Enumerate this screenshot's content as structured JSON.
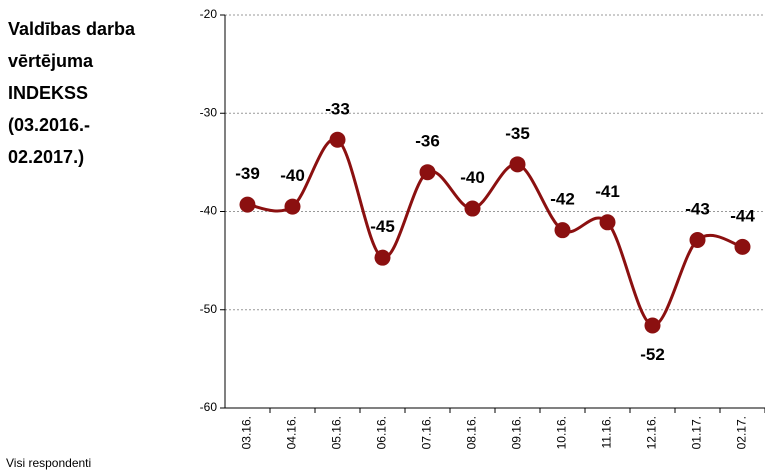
{
  "chart_data": {
    "type": "line",
    "title": [
      "Valdības darba",
      "vērtējuma",
      "INDEKSS",
      "(03.2016.-",
      "02.2017.)"
    ],
    "footnote": "Visi respondenti",
    "categories": [
      "03.16.",
      "04.16.",
      "05.16.",
      "06.16.",
      "07.16.",
      "08.16.",
      "09.16.",
      "10.16.",
      "11.16.",
      "12.16.",
      "01.17.",
      "02.17."
    ],
    "series": [
      {
        "name": "INDEKSS",
        "color": "#8b1010",
        "values": [
          -39.3,
          -39.5,
          -32.7,
          -44.7,
          -36.0,
          -39.7,
          -35.2,
          -41.9,
          -41.1,
          -51.6,
          -42.9,
          -43.6
        ],
        "value_labels": [
          "-39",
          "-40",
          "-33",
          "-45",
          "-36",
          "-40",
          "-35",
          "-42",
          "-41",
          "-52",
          "-43",
          "-44"
        ]
      }
    ],
    "ylim": [
      -60,
      -20
    ],
    "yticks": [
      -60,
      -50,
      -40,
      -30,
      -20
    ],
    "grid": true
  }
}
